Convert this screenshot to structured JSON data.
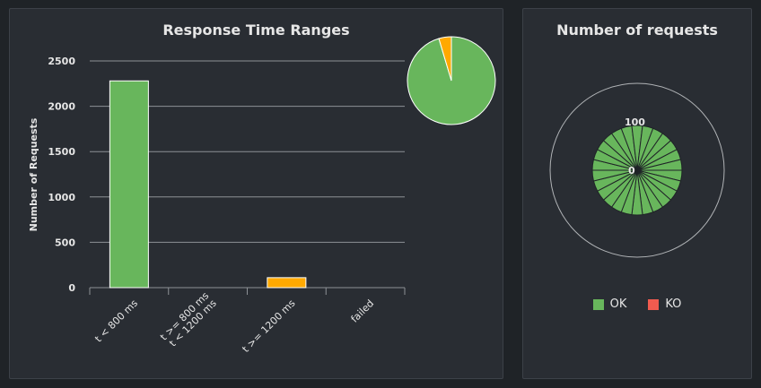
{
  "colors": {
    "ok": "#68b65c",
    "ko": "#f15b4f",
    "warn": "#ffa900",
    "axis_text": "#e6e6e6",
    "grid": "#8d9196",
    "background": "#292d33"
  },
  "response_chart": {
    "title": "Response Time Ranges",
    "ylabel": "Number of Requests"
  },
  "requests_chart": {
    "title": "Number of requests",
    "center_label": "0",
    "ring_label": "100",
    "legend": [
      {
        "label": "OK",
        "color": "#68b65c"
      },
      {
        "label": "KO",
        "color": "#f15b4f"
      }
    ]
  },
  "chart_data": [
    {
      "type": "bar",
      "title": "Response Time Ranges",
      "xlabel": "",
      "ylabel": "Number of Requests",
      "categories": [
        "t < 800 ms",
        "t >= 800 ms\nt < 1200 ms",
        "t >= 1200 ms",
        "failed"
      ],
      "values": [
        2280,
        0,
        110,
        0
      ],
      "bar_colors": [
        "#68b65c",
        "#68b65c",
        "#ffa900",
        "#f15b4f"
      ],
      "ylim": [
        0,
        2500
      ],
      "yticks": [
        0,
        500,
        1000,
        1500,
        2000,
        2500
      ],
      "grid": true
    },
    {
      "type": "pie",
      "categories": [
        "t < 800 ms",
        "t >= 1200 ms"
      ],
      "values": [
        2280,
        110
      ],
      "colors": [
        "#68b65c",
        "#ffa900"
      ]
    },
    {
      "type": "polar-bar",
      "title": "Number of requests",
      "series": [
        {
          "name": "OK",
          "color": "#68b65c"
        },
        {
          "name": "KO",
          "color": "#f15b4f"
        }
      ],
      "segments": 26,
      "radial_ticks": [
        0,
        100
      ]
    }
  ]
}
